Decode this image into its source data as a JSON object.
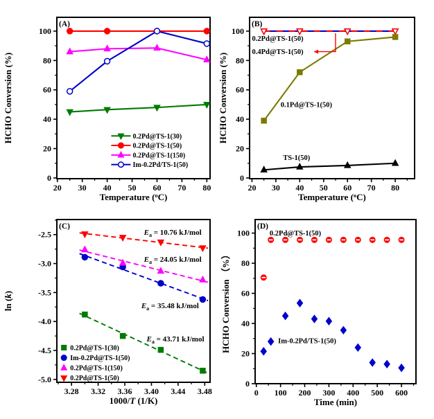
{
  "figure": {
    "background": "#FFFFFF",
    "panel_labels": [
      "(A)",
      "(B)",
      "(C)",
      "(D)"
    ]
  },
  "colors": {
    "green": "#007B00",
    "red": "#FF0000",
    "magenta": "#FF00FF",
    "blue": "#0000CC",
    "olive": "#7B7B00",
    "black": "#000000"
  },
  "chart_data": [
    {
      "id": "panel_a",
      "type": "line",
      "panel_label": "(A)",
      "xlabel": "Temperature (oC)",
      "ylabel": "HCHO Conversion (%)",
      "xlim": [
        19.8,
        81.3
      ],
      "ylim": [
        -0.5,
        109.4
      ],
      "xticks": [
        20,
        30,
        40,
        50,
        60,
        70,
        80
      ],
      "xtick_labels": [
        "20",
        "30",
        "40",
        "50",
        "60",
        "70",
        "80"
      ],
      "x_minor_step": 5,
      "yticks": [
        0,
        20,
        40,
        60,
        80,
        100
      ],
      "ytick_labels": [
        "0",
        "20",
        "40",
        "60",
        "80",
        "100"
      ],
      "y_minor_step": 10,
      "x": [
        25,
        40,
        60,
        80
      ],
      "series": [
        {
          "name": "0.2Pd@TS-1(30)",
          "color": "#007B00",
          "marker": "triangle-down",
          "open": false,
          "line": "solid",
          "values": [
            45,
            46.5,
            48,
            50
          ]
        },
        {
          "name": "0.2Pd@TS-1(50)",
          "color": "#FF0000",
          "marker": "circle",
          "open": false,
          "line": "solid",
          "values": [
            100,
            100,
            100,
            100
          ]
        },
        {
          "name": "0.2Pd@TS-1(150)",
          "color": "#FF00FF",
          "marker": "triangle-up",
          "open": false,
          "line": "solid",
          "values": [
            86,
            88,
            88.5,
            80.5
          ]
        },
        {
          "name": "Im-0.2Pd/TS-1(50)",
          "color": "#0000CC",
          "marker": "circle",
          "open": true,
          "line": "solid",
          "values": [
            59,
            79.5,
            100,
            91.5
          ]
        }
      ],
      "legend": {
        "show": true,
        "marker_only": false
      }
    },
    {
      "id": "panel_b",
      "type": "line",
      "panel_label": "(B)",
      "xlabel": "Temperature (oC)",
      "ylabel": "HCHO Conversion (%)",
      "xlim": [
        19.0,
        88.1
      ],
      "ylim": [
        -0.5,
        109.4
      ],
      "xticks": [
        20,
        30,
        40,
        50,
        60,
        70,
        80
      ],
      "xtick_labels": [
        "20",
        "30",
        "40",
        "50",
        "60",
        "70",
        "80"
      ],
      "x_minor_step": 5,
      "yticks": [
        0,
        20,
        40,
        60,
        80,
        100
      ],
      "ytick_labels": [
        "0",
        "20",
        "40",
        "60",
        "80",
        "100"
      ],
      "y_minor_step": 10,
      "x": [
        25,
        40,
        60,
        80
      ],
      "series": [
        {
          "name": "0.4Pd@TS-1(50)",
          "color": "#0000CC",
          "marker": "triangle-down",
          "open": true,
          "line": "solid",
          "values": [
            100,
            100,
            100,
            100
          ]
        },
        {
          "name": "0.2Pd@TS-1(50)",
          "color": "#FF0000",
          "marker": "triangle-down",
          "open": true,
          "line": "dashed",
          "values": [
            100,
            100,
            100,
            100
          ]
        },
        {
          "name": "0.1Pd@TS-1(50)",
          "color": "#7B7B00",
          "marker": "square",
          "open": false,
          "line": "solid",
          "values": [
            39,
            72,
            93,
            96
          ]
        },
        {
          "name": "TS-1(50)",
          "color": "#000000",
          "marker": "triangle-up",
          "open": false,
          "line": "solid",
          "values": [
            5.5,
            7.5,
            8.5,
            10
          ]
        }
      ],
      "annotations": [
        {
          "text": "0.2Pd@TS-1(50)",
          "x": 20,
          "y": 95,
          "color": "#000000",
          "anchor": "start",
          "size": 10.5
        },
        {
          "text": "0.4Pd@TS-1(50)",
          "x": 20,
          "y": 86,
          "color": "#000000",
          "anchor": "start",
          "size": 10.5
        },
        {
          "text": "0.1Pd@TS-1(50)",
          "x": 32,
          "y": 50,
          "color": "#000000",
          "anchor": "start",
          "size": 10.5
        },
        {
          "text": "TS-1(50)",
          "x": 33,
          "y": 14,
          "color": "#000000",
          "anchor": "start",
          "size": 10.5
        }
      ],
      "arrows": [
        {
          "points": [
            [
              55,
              98.5
            ],
            [
              55,
              86
            ],
            [
              46,
              86
            ]
          ],
          "color": "#FF0000"
        }
      ]
    },
    {
      "id": "panel_c",
      "type": "scatter",
      "panel_label": "(C)",
      "xlabel": "1000/T (1/K)",
      "ylabel": "ln (k)",
      "xlim": [
        3.258,
        3.488
      ],
      "ylim": [
        -5.05,
        -2.24
      ],
      "xticks": [
        3.28,
        3.32,
        3.36,
        3.4,
        3.44,
        3.48
      ],
      "xtick_labels": [
        "3.28",
        "3.32",
        "3.36",
        "3.40",
        "3.44",
        "3.48"
      ],
      "x_minor_step": 0.02,
      "yticks": [
        -2.5,
        -3.0,
        -3.5,
        -4.0,
        -4.5,
        -5.0
      ],
      "ytick_labels": [
        "-2.5",
        "-3.0",
        "-3.5",
        "-4.0",
        "-4.5",
        "-5.0"
      ],
      "y_minor_step": 0.25,
      "x": [
        3.3,
        3.357,
        3.414,
        3.477
      ],
      "series": [
        {
          "name": "0.2Pd@TS-1(30)",
          "color": "#007B00",
          "marker": "square",
          "open": false,
          "line": "fit-dashed",
          "values": [
            -3.88,
            -4.25,
            -4.49,
            -4.85
          ]
        },
        {
          "name": "Im-0.2Pd@TS-1(50)",
          "color": "#0000CC",
          "marker": "circle",
          "open": false,
          "line": "fit-dashed",
          "values": [
            -2.89,
            -3.06,
            -3.34,
            -3.62
          ]
        },
        {
          "name": "0.2Pd@TS-1(150)",
          "color": "#FF00FF",
          "marker": "triangle-up",
          "open": false,
          "line": "fit-dashed",
          "values": [
            -2.76,
            -2.99,
            -3.13,
            -3.28
          ]
        },
        {
          "name": "0.2Pd@TS-1(50)",
          "color": "#FF0000",
          "marker": "triangle-down",
          "open": false,
          "line": "fit-dashed",
          "values": [
            -2.49,
            -2.55,
            -2.63,
            -2.73
          ]
        }
      ],
      "annotations": [
        {
          "text": "Ea = 10.76 kJ/mol",
          "x": 3.432,
          "y": -2.46,
          "color": "#000000",
          "anchor": "middle",
          "size": 11
        },
        {
          "text": "Ea = 24.05 kJ/mol",
          "x": 3.432,
          "y": -2.93,
          "color": "#000000",
          "anchor": "middle",
          "size": 11
        },
        {
          "text": "Ea = 35.48 kJ/mol",
          "x": 3.428,
          "y": -3.73,
          "color": "#000000",
          "anchor": "middle",
          "size": 11
        },
        {
          "text": "Ea = 43.71 kJ/mol",
          "x": 3.436,
          "y": -4.3,
          "color": "#000000",
          "anchor": "middle",
          "size": 11
        }
      ],
      "legend": {
        "show": true,
        "marker_only": true
      }
    },
    {
      "id": "panel_d",
      "type": "scatter",
      "panel_label": "(D)",
      "xlabel": "Time (min)",
      "ylabel": "HCHO Conversion （%）",
      "xlim": [
        -5,
        660
      ],
      "ylim": [
        0,
        109
      ],
      "xticks": [
        0,
        100,
        200,
        300,
        400,
        500,
        600
      ],
      "xtick_labels": [
        "0",
        "100",
        "200",
        "300",
        "400",
        "500",
        "600"
      ],
      "x_minor_step": 50,
      "yticks": [
        0,
        20,
        40,
        60,
        80,
        100
      ],
      "ytick_labels": [
        "0",
        "20",
        "40",
        "60",
        "80",
        "100"
      ],
      "y_minor_step": 10,
      "x": [
        30,
        60,
        120,
        180,
        240,
        300,
        360,
        420,
        480,
        540,
        600
      ],
      "series": [
        {
          "name": "0.2Pd@TS-1(50)",
          "color": "#FF0000",
          "marker": "circle-half",
          "open": false,
          "line": "none",
          "values": [
            70.5,
            95.5,
            95.5,
            95.5,
            95.5,
            95.5,
            95.5,
            95.5,
            95.5,
            95.5,
            95.5
          ]
        },
        {
          "name": "Im-0.2Pd/TS-1(50)",
          "color": "#0000CC",
          "marker": "diamond",
          "open": false,
          "line": "none",
          "values": [
            21.5,
            28,
            45,
            53.5,
            43,
            41.5,
            35.5,
            24,
            14,
            13,
            10.5
          ]
        }
      ],
      "annotations": [
        {
          "text": "0.2Pd@TS-1(50)",
          "x": 55,
          "y": 100,
          "color": "#000000",
          "anchor": "start",
          "size": 10.5
        },
        {
          "text": "Im-0.2Pd/TS-1(50)",
          "x": 90,
          "y": 28.5,
          "color": "#000000",
          "anchor": "start",
          "size": 10.5
        }
      ]
    }
  ]
}
